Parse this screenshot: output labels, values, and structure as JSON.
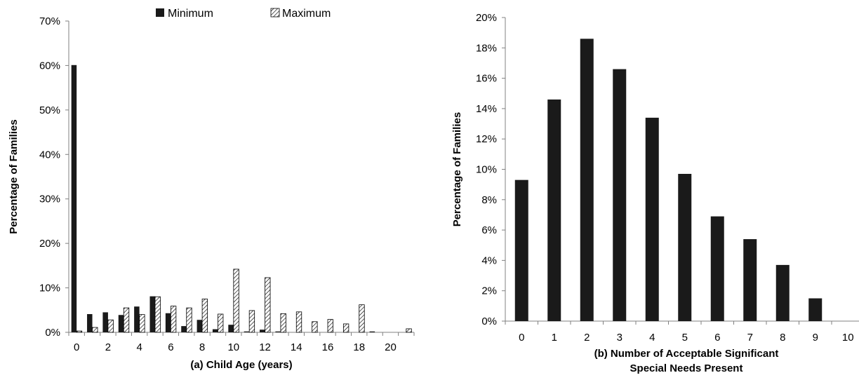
{
  "chart_data": [
    {
      "type": "bar",
      "xlabel": "(a) Child Age (years)",
      "ylabel": "Percentage of Families",
      "ylim": [
        0,
        70
      ],
      "y_ticks": [
        "0%",
        "10%",
        "20%",
        "30%",
        "40%",
        "50%",
        "60%",
        "70%"
      ],
      "x_tick_labels": [
        "0",
        "2",
        "4",
        "6",
        "8",
        "10",
        "12",
        "14",
        "16",
        "18",
        "20"
      ],
      "legend_position": "top",
      "categories": [
        0,
        1,
        2,
        3,
        4,
        5,
        6,
        7,
        8,
        9,
        10,
        11,
        12,
        13,
        14,
        15,
        16,
        17,
        18,
        19,
        20,
        21
      ],
      "series": [
        {
          "name": "Minimum",
          "pattern": "solid",
          "values": [
            60.1,
            4.1,
            4.5,
            3.9,
            5.8,
            8.1,
            4.3,
            1.4,
            2.8,
            0.7,
            1.7,
            0.2,
            0.6,
            0.2,
            0.0,
            0.0,
            0.0,
            0.0,
            0.0,
            0.2,
            0.0,
            0.0
          ]
        },
        {
          "name": "Maximum",
          "pattern": "hatched",
          "values": [
            0.3,
            1.1,
            2.8,
            5.5,
            4.0,
            8.0,
            5.9,
            5.5,
            7.5,
            4.1,
            14.2,
            4.9,
            12.3,
            4.2,
            4.6,
            2.4,
            2.9,
            1.9,
            6.2,
            0.0,
            0.0,
            0.8
          ]
        }
      ]
    },
    {
      "type": "bar",
      "xlabel": [
        "(b) Number of Acceptable Significant",
        "Special Needs Present"
      ],
      "ylabel": "Percentage of Families",
      "ylim": [
        0,
        20
      ],
      "y_ticks": [
        "0%",
        "2%",
        "4%",
        "6%",
        "8%",
        "10%",
        "12%",
        "14%",
        "16%",
        "18%",
        "20%"
      ],
      "categories": [
        "0",
        "1",
        "2",
        "3",
        "4",
        "5",
        "6",
        "7",
        "8",
        "9",
        "10"
      ],
      "values": [
        9.3,
        14.6,
        18.6,
        16.6,
        13.4,
        9.7,
        6.9,
        5.4,
        3.7,
        1.5,
        0.0
      ]
    }
  ]
}
